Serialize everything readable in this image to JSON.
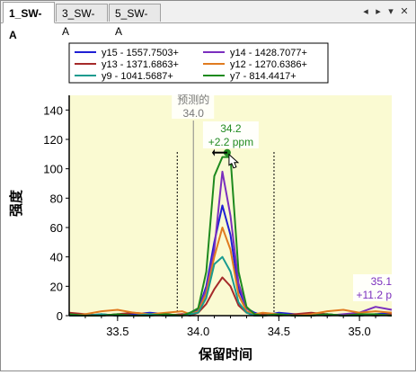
{
  "tabs": [
    {
      "label": "1_SW-A",
      "active": true
    },
    {
      "label": "3_SW-A",
      "active": false
    },
    {
      "label": "5_SW-A",
      "active": false
    }
  ],
  "tab_controls": {
    "prev": "◂",
    "next": "▸",
    "menu": "▾",
    "close": "✕"
  },
  "chart_data": {
    "type": "line",
    "xlabel": "保留时间",
    "ylabel": "强度",
    "xlim": [
      33.2,
      35.2
    ],
    "ylim": [
      0,
      150
    ],
    "x_ticks": [
      "33.5",
      "34.0",
      "34.5",
      "35.0"
    ],
    "y_ticks": [
      "0",
      "20",
      "40",
      "60",
      "80",
      "100",
      "120",
      "140"
    ],
    "background": "#fafad2",
    "predicted": {
      "label": "预测的",
      "value_label": "34.0",
      "x": 33.97
    },
    "integration_bounds": [
      33.87,
      34.47
    ],
    "annotations": [
      {
        "line1": "34.2",
        "line2": "+2.2 ppm",
        "x": 34.18,
        "color": "#228b22"
      },
      {
        "line1": "35.1",
        "line2": "+11.2 p",
        "x": 35.1,
        "color": "#7b2fbe"
      }
    ],
    "legend_position": "top",
    "series": [
      {
        "name": "y15 - 1557.7503+",
        "color": "#1f1fd4",
        "x": [
          33.2,
          33.3,
          33.4,
          33.5,
          33.6,
          33.7,
          33.8,
          33.9,
          33.95,
          34.0,
          34.05,
          34.1,
          34.15,
          34.2,
          34.25,
          34.3,
          34.35,
          34.4,
          34.5,
          34.6,
          34.7,
          34.8,
          34.9,
          35.0,
          35.1,
          35.2
        ],
        "y": [
          1,
          0,
          1,
          0,
          1,
          2,
          1,
          0,
          2,
          4,
          20,
          50,
          75,
          55,
          18,
          5,
          2,
          0,
          2,
          1,
          0,
          1,
          0,
          0,
          1,
          2
        ]
      },
      {
        "name": "y14 - 1428.7077+",
        "color": "#7b2fbe",
        "x": [
          33.2,
          33.3,
          33.4,
          33.5,
          33.6,
          33.7,
          33.8,
          33.9,
          33.95,
          34.0,
          34.05,
          34.1,
          34.15,
          34.2,
          34.25,
          34.3,
          34.35,
          34.4,
          34.5,
          34.6,
          34.7,
          34.8,
          34.9,
          35.0,
          35.1,
          35.2
        ],
        "y": [
          0,
          1,
          0,
          1,
          0,
          1,
          0,
          1,
          1,
          3,
          18,
          45,
          98,
          68,
          22,
          5,
          1,
          0,
          1,
          0,
          1,
          0,
          1,
          2,
          6,
          4
        ]
      },
      {
        "name": "y13 - 1371.6863+",
        "color": "#a52a2a",
        "x": [
          33.2,
          33.3,
          33.4,
          33.5,
          33.6,
          33.7,
          33.8,
          33.9,
          33.95,
          34.0,
          34.05,
          34.1,
          34.15,
          34.2,
          34.25,
          34.3,
          34.35,
          34.4,
          34.5,
          34.6,
          34.7,
          34.8,
          34.9,
          35.0,
          35.1,
          35.2
        ],
        "y": [
          2,
          1,
          0,
          1,
          2,
          1,
          0,
          1,
          0,
          2,
          8,
          18,
          26,
          20,
          7,
          2,
          0,
          1,
          0,
          1,
          2,
          1,
          0,
          1,
          0,
          1
        ]
      },
      {
        "name": "y12 - 1270.6386+",
        "color": "#e07b20",
        "x": [
          33.2,
          33.3,
          33.4,
          33.5,
          33.6,
          33.7,
          33.8,
          33.9,
          33.95,
          34.0,
          34.05,
          34.1,
          34.15,
          34.2,
          34.25,
          34.3,
          34.35,
          34.4,
          34.5,
          34.6,
          34.7,
          34.8,
          34.9,
          35.0,
          35.1,
          35.2
        ],
        "y": [
          0,
          1,
          3,
          4,
          2,
          1,
          2,
          3,
          1,
          3,
          15,
          40,
          60,
          45,
          14,
          3,
          1,
          2,
          1,
          0,
          1,
          3,
          4,
          2,
          3,
          2
        ]
      },
      {
        "name": "y9 - 1041.5687+",
        "color": "#1a9b8f",
        "x": [
          33.2,
          33.3,
          33.4,
          33.5,
          33.6,
          33.7,
          33.8,
          33.9,
          33.95,
          34.0,
          34.05,
          34.1,
          34.15,
          34.2,
          34.25,
          34.3,
          34.35,
          34.4,
          34.5,
          34.6,
          34.7,
          34.8,
          34.9,
          35.0,
          35.1,
          35.2
        ],
        "y": [
          0,
          0,
          1,
          0,
          0,
          1,
          0,
          0,
          1,
          2,
          12,
          35,
          40,
          30,
          9,
          2,
          0,
          0,
          1,
          0,
          0,
          1,
          0,
          0,
          1,
          0
        ]
      },
      {
        "name": "y7 - 814.4417+",
        "color": "#1e8a1e",
        "x": [
          33.2,
          33.3,
          33.4,
          33.5,
          33.6,
          33.7,
          33.8,
          33.9,
          33.95,
          34.0,
          34.05,
          34.1,
          34.15,
          34.2,
          34.25,
          34.3,
          34.35,
          34.4,
          34.5,
          34.6,
          34.7,
          34.8,
          34.9,
          35.0,
          35.1,
          35.2
        ],
        "y": [
          1,
          0,
          0,
          1,
          0,
          0,
          1,
          0,
          2,
          5,
          30,
          95,
          108,
          108,
          30,
          6,
          1,
          0,
          1,
          0,
          0,
          1,
          0,
          1,
          1,
          0
        ]
      }
    ]
  }
}
